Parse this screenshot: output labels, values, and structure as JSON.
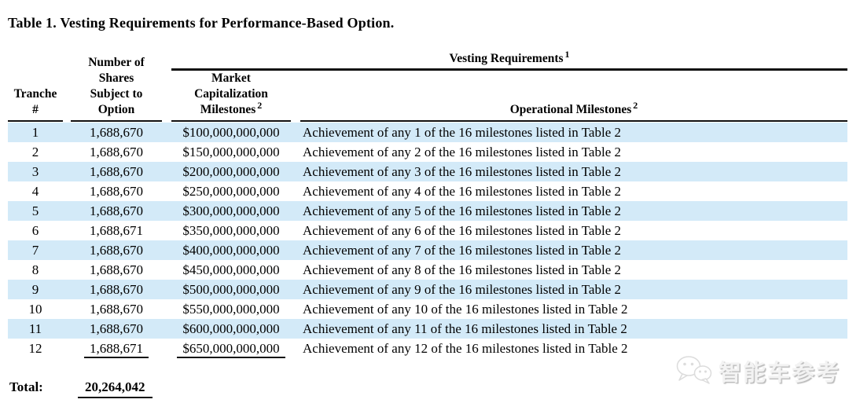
{
  "title": "Table 1. Vesting Requirements for Performance-Based Option.",
  "table": {
    "headers": {
      "tranche": "Tranche\n#",
      "shares": "Number of\nShares\nSubject to\nOption",
      "vesting_group": {
        "label": "Vesting Requirements",
        "sup": "1"
      },
      "market_cap": {
        "label": "Market\nCapitalization\nMilestones",
        "sup": "2"
      },
      "operational": {
        "label": "Operational Milestones",
        "sup": "2"
      }
    },
    "rows": [
      {
        "tranche": "1",
        "shares": "1,688,670",
        "market_cap": "$100,000,000,000",
        "milestone": "Achievement of any 1 of the 16 milestones listed in Table 2"
      },
      {
        "tranche": "2",
        "shares": "1,688,670",
        "market_cap": "$150,000,000,000",
        "milestone": "Achievement of any 2 of the 16 milestones listed in Table 2"
      },
      {
        "tranche": "3",
        "shares": "1,688,670",
        "market_cap": "$200,000,000,000",
        "milestone": "Achievement of any 3 of the 16 milestones listed in Table 2"
      },
      {
        "tranche": "4",
        "shares": "1,688,670",
        "market_cap": "$250,000,000,000",
        "milestone": "Achievement of any 4 of the 16 milestones listed in Table 2"
      },
      {
        "tranche": "5",
        "shares": "1,688,670",
        "market_cap": "$300,000,000,000",
        "milestone": "Achievement of any 5 of the 16 milestones listed in Table 2"
      },
      {
        "tranche": "6",
        "shares": "1,688,671",
        "market_cap": "$350,000,000,000",
        "milestone": "Achievement of any 6 of the 16 milestones listed in Table 2"
      },
      {
        "tranche": "7",
        "shares": "1,688,670",
        "market_cap": "$400,000,000,000",
        "milestone": "Achievement of any 7 of the 16 milestones listed in Table 2"
      },
      {
        "tranche": "8",
        "shares": "1,688,670",
        "market_cap": "$450,000,000,000",
        "milestone": "Achievement of any 8 of the 16 milestones listed in Table 2"
      },
      {
        "tranche": "9",
        "shares": "1,688,670",
        "market_cap": "$500,000,000,000",
        "milestone": "Achievement of any 9 of the 16 milestones listed in Table 2"
      },
      {
        "tranche": "10",
        "shares": "1,688,670",
        "market_cap": "$550,000,000,000",
        "milestone": "Achievement of any 10 of the 16 milestones listed in Table 2"
      },
      {
        "tranche": "11",
        "shares": "1,688,670",
        "market_cap": "$600,000,000,000",
        "milestone": "Achievement of any 11 of the 16 milestones listed in Table 2"
      },
      {
        "tranche": "12",
        "shares": "1,688,671",
        "market_cap": "$650,000,000,000",
        "milestone": "Achievement of any 12 of the 16 milestones listed in Table 2"
      }
    ],
    "total": {
      "label": "Total:",
      "value": "20,264,042"
    }
  },
  "watermark": {
    "icon": "wechat-icon",
    "text": "智能车参考"
  },
  "colors": {
    "row_highlight": "#d3eaf8",
    "rule": "#111111",
    "watermark_gray": "#d6d6d6"
  }
}
